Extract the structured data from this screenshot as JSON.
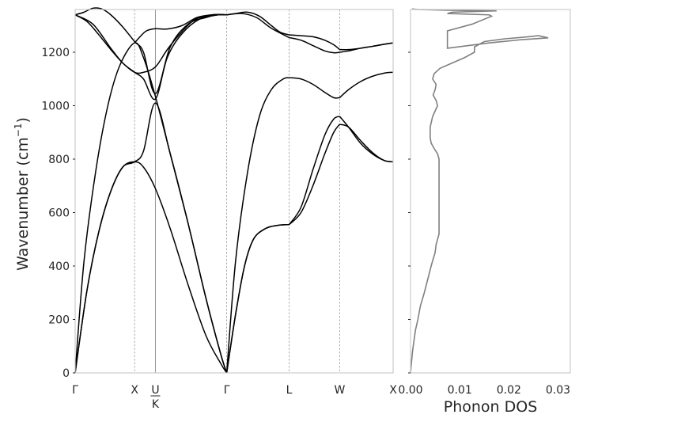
{
  "chart_data": [
    {
      "type": "line",
      "ylabel": "Wavenumber (cm",
      "ylabel_sup": "−1",
      "ylabel_close": ")",
      "ylim": [
        0,
        1360
      ],
      "yticks": [
        0,
        200,
        400,
        600,
        800,
        1000,
        1200
      ],
      "xlim": [
        0,
        5.35
      ],
      "kpoints": [
        {
          "label": "Γ",
          "x": 0,
          "style": "none"
        },
        {
          "label": "X",
          "x": 1.0,
          "style": "dashed"
        },
        {
          "label": "U",
          "label2": "K",
          "x": 1.35,
          "style": "solid"
        },
        {
          "label": "Γ",
          "x": 2.55,
          "style": "dashed"
        },
        {
          "label": "L",
          "x": 3.6,
          "style": "dashed"
        },
        {
          "label": "W",
          "x": 4.45,
          "style": "dashed"
        },
        {
          "label": "X",
          "x": 5.35,
          "style": "none"
        }
      ],
      "grid": false,
      "series": [
        {
          "x": [
            0,
            0.2,
            0.4,
            0.6,
            0.8,
            1.0,
            1.15,
            1.35,
            1.6,
            1.9,
            2.2,
            2.45,
            2.55
          ],
          "values": [
            0,
            310,
            530,
            680,
            770,
            790,
            770,
            690,
            540,
            330,
            140,
            35,
            0
          ]
        },
        {
          "x": [
            0,
            0.2,
            0.4,
            0.6,
            0.8,
            1.0,
            1.15,
            1.35,
            1.6,
            1.9,
            2.2,
            2.45,
            2.55
          ],
          "values": [
            0,
            310,
            530,
            680,
            770,
            790,
            830,
            1010,
            820,
            560,
            280,
            70,
            0
          ]
        },
        {
          "x": [
            0,
            0.15,
            0.35,
            0.55,
            0.75,
            1.0,
            1.15,
            1.35,
            1.6,
            1.9,
            2.2,
            2.45,
            2.55
          ],
          "values": [
            0,
            420,
            760,
            1000,
            1150,
            1235,
            1180,
            1035,
            820,
            560,
            280,
            70,
            0
          ]
        },
        {
          "x": [
            0,
            0.2,
            0.4,
            0.6,
            0.8,
            1.0,
            1.15,
            1.35,
            1.55,
            1.75,
            2.0,
            2.3,
            2.55
          ],
          "values": [
            1340,
            1315,
            1265,
            1210,
            1160,
            1125,
            1125,
            1145,
            1210,
            1265,
            1320,
            1340,
            1340
          ]
        },
        {
          "x": [
            0,
            0.15,
            0.3,
            0.45,
            0.6,
            0.8,
            1.0,
            1.15,
            1.35,
            1.6,
            1.9,
            2.2,
            2.4,
            2.55
          ],
          "values": [
            1340,
            1350,
            1365,
            1362,
            1340,
            1295,
            1240,
            1200,
            1045,
            1220,
            1305,
            1330,
            1340,
            1340
          ]
        },
        {
          "x": [
            0,
            0.3,
            0.6,
            0.8,
            1.0,
            1.15,
            1.35,
            1.55,
            1.8,
            2.1,
            2.4,
            2.55
          ],
          "values": [
            1340,
            1305,
            1215,
            1160,
            1125,
            1100,
            1025,
            1180,
            1270,
            1325,
            1340,
            1340
          ]
        },
        {
          "x": [
            1.0,
            1.1,
            1.2,
            1.35,
            1.55,
            1.8,
            2.05,
            2.3,
            2.55
          ],
          "values": [
            1235,
            1260,
            1280,
            1288,
            1287,
            1300,
            1330,
            1340,
            1340
          ]
        },
        {
          "x": [
            2.55,
            2.7,
            2.85,
            3.0,
            3.2,
            3.4,
            3.6
          ],
          "values": [
            0,
            220,
            400,
            500,
            540,
            552,
            555
          ]
        },
        {
          "x": [
            2.55,
            2.7,
            2.85,
            3.0,
            3.2,
            3.4,
            3.6
          ],
          "values": [
            0,
            220,
            400,
            500,
            540,
            552,
            555
          ]
        },
        {
          "x": [
            2.55,
            2.7,
            2.9,
            3.1,
            3.3,
            3.5,
            3.6
          ],
          "values": [
            0,
            420,
            750,
            960,
            1060,
            1100,
            1105
          ]
        },
        {
          "x": [
            2.55,
            2.8,
            3.05,
            3.3,
            3.6
          ],
          "values": [
            1340,
            1345,
            1330,
            1290,
            1255
          ]
        },
        {
          "x": [
            2.55,
            2.7,
            2.9,
            3.1,
            3.3,
            3.45,
            3.6
          ],
          "values": [
            1340,
            1345,
            1350,
            1335,
            1300,
            1275,
            1265
          ]
        },
        {
          "x": [
            3.6,
            3.8,
            4.0,
            4.2,
            4.35,
            4.45
          ],
          "values": [
            555,
            620,
            760,
            890,
            950,
            960
          ]
        },
        {
          "x": [
            3.6,
            3.8,
            4.0,
            4.2,
            4.35,
            4.45
          ],
          "values": [
            555,
            600,
            700,
            820,
            900,
            930
          ]
        },
        {
          "x": [
            3.6,
            3.8,
            4.0,
            4.2,
            4.35,
            4.45
          ],
          "values": [
            1105,
            1100,
            1080,
            1050,
            1030,
            1030
          ]
        },
        {
          "x": [
            3.6,
            3.8,
            4.0,
            4.2,
            4.35,
            4.45
          ],
          "values": [
            1255,
            1245,
            1225,
            1205,
            1198,
            1200
          ]
        },
        {
          "x": [
            3.6,
            3.8,
            4.0,
            4.2,
            4.35,
            4.45
          ],
          "values": [
            1265,
            1262,
            1258,
            1245,
            1228,
            1210
          ]
        },
        {
          "x": [
            4.45,
            4.6,
            4.8,
            5.0,
            5.2,
            5.35
          ],
          "values": [
            960,
            920,
            860,
            820,
            795,
            790
          ]
        },
        {
          "x": [
            4.45,
            4.6,
            4.8,
            5.0,
            5.2,
            5.35
          ],
          "values": [
            930,
            920,
            870,
            825,
            795,
            790
          ]
        },
        {
          "x": [
            4.45,
            4.6,
            4.8,
            5.0,
            5.2,
            5.35
          ],
          "values": [
            1030,
            1060,
            1090,
            1110,
            1122,
            1125
          ]
        },
        {
          "x": [
            4.45,
            4.6,
            4.8,
            5.0,
            5.2,
            5.35
          ],
          "values": [
            1200,
            1205,
            1215,
            1222,
            1230,
            1235
          ]
        },
        {
          "x": [
            4.45,
            4.6,
            4.8,
            5.0,
            5.2,
            5.35
          ],
          "values": [
            1210,
            1210,
            1215,
            1222,
            1230,
            1235
          ]
        }
      ]
    },
    {
      "type": "line",
      "xlabel": "Phonon DOS",
      "xlim": [
        0,
        0.0325
      ],
      "ylim": [
        0,
        1360
      ],
      "xticks": [
        "0.00",
        "0.01",
        "0.02",
        "0.03"
      ],
      "xtick_values": [
        0,
        0.01,
        0.02,
        0.03
      ],
      "grid": false,
      "series": [
        {
          "x": [
            0,
            0.0002,
            0.0004,
            0.0007,
            0.001,
            0.0015,
            0.002,
            0.0028,
            0.0035,
            0.0042,
            0.0045,
            0.005,
            0.0052,
            0.0055,
            0.0058,
            0.0058,
            0.0055,
            0.0048,
            0.0042,
            0.004,
            0.004,
            0.0045,
            0.005,
            0.0055,
            0.0052,
            0.0046,
            0.005,
            0.0052,
            0.0045,
            0.0048,
            0.006,
            0.0085,
            0.011,
            0.013,
            0.013,
            0.015,
            0.019,
            0.024,
            0.026,
            0.027,
            0.028,
            0.0225,
            0.016,
            0.0075,
            0.0075,
            0.0125,
            0.0165,
            0.016,
            0.0075,
            0.0085,
            0.0175,
            0.0075,
            0.0015,
            0.0003
          ],
          "values": [
            0,
            40,
            80,
            120,
            160,
            200,
            250,
            300,
            350,
            400,
            420,
            450,
            480,
            500,
            520,
            800,
            820,
            840,
            860,
            880,
            920,
            960,
            980,
            1000,
            1020,
            1040,
            1060,
            1080,
            1100,
            1120,
            1140,
            1160,
            1180,
            1200,
            1220,
            1240,
            1250,
            1258,
            1262,
            1258,
            1254,
            1247,
            1235,
            1215,
            1280,
            1305,
            1335,
            1340,
            1345,
            1350,
            1355,
            1357,
            1360,
            1362
          ]
        }
      ]
    }
  ]
}
